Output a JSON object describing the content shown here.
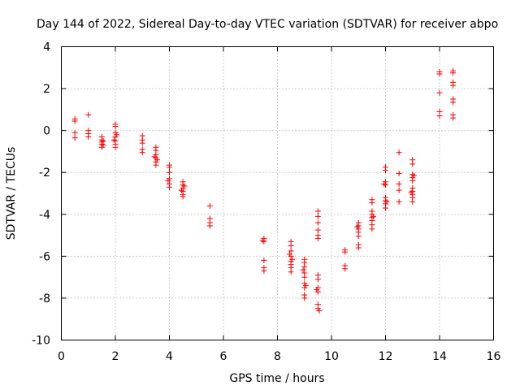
{
  "chart_data": {
    "type": "scatter",
    "title": "Day 144 of 2022, Sidereal Day-to-day VTEC variation (SDTVAR) for receiver abpo",
    "xlabel": "GPS time / hours",
    "ylabel": "SDTVAR / TECUs",
    "xlim": [
      0,
      16
    ],
    "ylim": [
      -10,
      4
    ],
    "xticks": [
      0,
      2,
      4,
      6,
      8,
      10,
      12,
      14,
      16
    ],
    "yticks": [
      -10,
      -8,
      -6,
      -4,
      -2,
      0,
      2,
      4
    ],
    "xtick_labels": [
      "0",
      "2",
      "4",
      "6",
      "8",
      "10",
      "12",
      "14",
      "16"
    ],
    "ytick_labels": [
      "-10",
      "-8",
      "-6",
      "-4",
      "-2",
      "0",
      "2",
      "4"
    ],
    "grid": true,
    "marker": "+",
    "color": "#ff0000",
    "series": [
      {
        "name": "SDTVAR",
        "points": [
          [
            0.5,
            0.55
          ],
          [
            0.5,
            0.45
          ],
          [
            0.5,
            -0.1
          ],
          [
            0.5,
            -0.35
          ],
          [
            1.0,
            0.75
          ],
          [
            1.0,
            0.0
          ],
          [
            1.0,
            -0.15
          ],
          [
            1.0,
            -0.3
          ],
          [
            1.5,
            -0.3
          ],
          [
            1.5,
            -0.45
          ],
          [
            1.5,
            -0.55
          ],
          [
            1.5,
            -0.65
          ],
          [
            1.5,
            -0.8
          ],
          [
            1.55,
            -0.5
          ],
          [
            1.55,
            -0.7
          ],
          [
            2.0,
            0.3
          ],
          [
            2.0,
            0.2
          ],
          [
            2.0,
            -0.1
          ],
          [
            2.0,
            -0.3
          ],
          [
            2.0,
            -0.5
          ],
          [
            2.0,
            -0.65
          ],
          [
            2.0,
            -0.8
          ],
          [
            2.05,
            -0.2
          ],
          [
            1.95,
            -0.45
          ],
          [
            3.0,
            -0.25
          ],
          [
            3.0,
            -0.45
          ],
          [
            3.0,
            -0.6
          ],
          [
            3.0,
            -0.9
          ],
          [
            3.0,
            -1.05
          ],
          [
            3.5,
            -0.8
          ],
          [
            3.5,
            -0.95
          ],
          [
            3.5,
            -1.15
          ],
          [
            3.5,
            -1.3
          ],
          [
            3.5,
            -1.5
          ],
          [
            3.5,
            -1.65
          ],
          [
            3.45,
            -1.25
          ],
          [
            3.55,
            -1.4
          ],
          [
            4.0,
            -1.65
          ],
          [
            4.0,
            -1.75
          ],
          [
            4.0,
            -2.0
          ],
          [
            4.0,
            -2.3
          ],
          [
            4.0,
            -2.55
          ],
          [
            4.0,
            -2.7
          ],
          [
            3.95,
            -2.4
          ],
          [
            4.5,
            -2.45
          ],
          [
            4.5,
            -2.6
          ],
          [
            4.5,
            -2.75
          ],
          [
            4.5,
            -2.9
          ],
          [
            4.5,
            -3.05
          ],
          [
            4.5,
            -3.15
          ],
          [
            4.45,
            -2.85
          ],
          [
            4.55,
            -2.65
          ],
          [
            5.5,
            -3.6
          ],
          [
            5.5,
            -4.2
          ],
          [
            5.5,
            -4.4
          ],
          [
            5.5,
            -4.55
          ],
          [
            7.5,
            -5.15
          ],
          [
            7.5,
            -5.3
          ],
          [
            7.5,
            -6.2
          ],
          [
            7.5,
            -6.55
          ],
          [
            7.5,
            -6.7
          ],
          [
            7.45,
            -5.25
          ],
          [
            8.5,
            -5.3
          ],
          [
            8.5,
            -5.5
          ],
          [
            8.5,
            -5.75
          ],
          [
            8.5,
            -6.0
          ],
          [
            8.5,
            -6.25
          ],
          [
            8.5,
            -6.4
          ],
          [
            8.5,
            -6.55
          ],
          [
            8.5,
            -6.75
          ],
          [
            8.45,
            -5.9
          ],
          [
            8.55,
            -6.15
          ],
          [
            9.0,
            -6.15
          ],
          [
            9.0,
            -6.3
          ],
          [
            9.0,
            -6.5
          ],
          [
            9.0,
            -6.8
          ],
          [
            9.0,
            -7.0
          ],
          [
            9.0,
            -7.3
          ],
          [
            9.0,
            -7.5
          ],
          [
            9.0,
            -7.85
          ],
          [
            9.0,
            -8.0
          ],
          [
            8.95,
            -6.65
          ],
          [
            9.05,
            -7.4
          ],
          [
            9.5,
            -3.85
          ],
          [
            9.5,
            -4.1
          ],
          [
            9.5,
            -4.4
          ],
          [
            9.5,
            -4.75
          ],
          [
            9.5,
            -5.0
          ],
          [
            9.5,
            -5.15
          ],
          [
            9.5,
            -6.9
          ],
          [
            9.5,
            -7.1
          ],
          [
            9.5,
            -7.5
          ],
          [
            9.5,
            -7.7
          ],
          [
            9.5,
            -8.3
          ],
          [
            9.5,
            -8.5
          ],
          [
            9.55,
            -8.6
          ],
          [
            9.45,
            -7.6
          ],
          [
            10.5,
            -5.7
          ],
          [
            10.5,
            -5.8
          ],
          [
            10.5,
            -6.45
          ],
          [
            10.5,
            -6.6
          ],
          [
            11.0,
            -4.4
          ],
          [
            11.0,
            -4.55
          ],
          [
            11.0,
            -4.7
          ],
          [
            11.0,
            -4.85
          ],
          [
            11.0,
            -5.05
          ],
          [
            11.0,
            -5.45
          ],
          [
            11.0,
            -5.6
          ],
          [
            10.95,
            -4.6
          ],
          [
            11.5,
            -3.3
          ],
          [
            11.5,
            -3.45
          ],
          [
            11.5,
            -3.85
          ],
          [
            11.5,
            -4.0
          ],
          [
            11.5,
            -4.15
          ],
          [
            11.5,
            -4.3
          ],
          [
            11.5,
            -4.5
          ],
          [
            11.5,
            -4.7
          ],
          [
            11.55,
            -4.1
          ],
          [
            12.0,
            -1.75
          ],
          [
            12.0,
            -1.9
          ],
          [
            12.0,
            -2.45
          ],
          [
            12.0,
            -2.6
          ],
          [
            12.0,
            -3.2
          ],
          [
            12.0,
            -3.35
          ],
          [
            12.0,
            -3.5
          ],
          [
            12.0,
            -3.7
          ],
          [
            12.05,
            -3.4
          ],
          [
            11.95,
            -2.55
          ],
          [
            12.5,
            -1.05
          ],
          [
            12.5,
            -2.05
          ],
          [
            12.5,
            -2.55
          ],
          [
            12.5,
            -2.85
          ],
          [
            12.5,
            -3.4
          ],
          [
            13.0,
            -1.4
          ],
          [
            13.0,
            -1.6
          ],
          [
            13.0,
            -2.1
          ],
          [
            13.0,
            -2.25
          ],
          [
            13.0,
            -2.4
          ],
          [
            13.0,
            -2.75
          ],
          [
            13.0,
            -2.9
          ],
          [
            13.0,
            -3.05
          ],
          [
            13.0,
            -3.2
          ],
          [
            13.0,
            -3.4
          ],
          [
            13.05,
            -2.15
          ],
          [
            12.95,
            -2.95
          ],
          [
            14.0,
            2.8
          ],
          [
            14.0,
            2.7
          ],
          [
            14.0,
            1.8
          ],
          [
            14.0,
            0.9
          ],
          [
            14.0,
            0.7
          ],
          [
            14.5,
            2.85
          ],
          [
            14.5,
            2.75
          ],
          [
            14.5,
            2.3
          ],
          [
            14.5,
            2.15
          ],
          [
            14.5,
            1.5
          ],
          [
            14.5,
            1.35
          ],
          [
            14.5,
            0.75
          ],
          [
            14.5,
            0.6
          ]
        ]
      }
    ]
  }
}
